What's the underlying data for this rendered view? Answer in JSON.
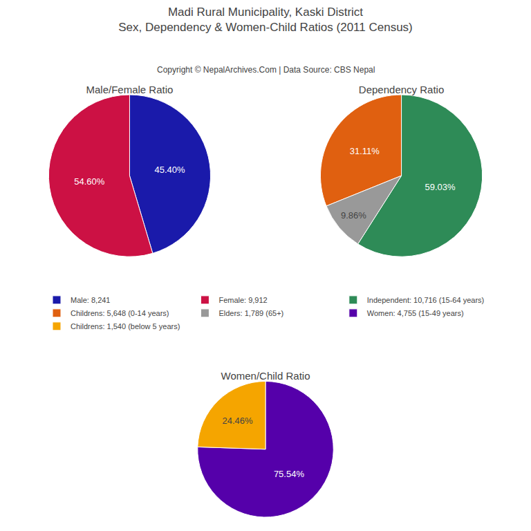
{
  "title": "Madi Rural Municipality, Kaski District",
  "subtitle": "Sex, Dependency & Women-Child Ratios (2011 Census)",
  "annotations": [
    "Copyright © NepalArchives.Com | Data Source: CBS Nepal"
  ],
  "legend": "center",
  "chart_data": [
    {
      "type": "pie",
      "title": "Male/Female Ratio",
      "categories": [
        "Male: 8,241",
        "Female: 9,912"
      ],
      "values": [
        45.4,
        54.6
      ],
      "value_labels": [
        "45.40%",
        "54.60%"
      ],
      "colors": [
        "#1a1aaa",
        "#cc1144"
      ],
      "data_labels": true
    },
    {
      "type": "pie",
      "title": "Dependency Ratio",
      "categories": [
        "Independent: 10,716 (15-64 years)",
        "Childrens: 5,648 (0-14 years)",
        "Elders: 1,789 (65+)"
      ],
      "values": [
        59.03,
        31.11,
        9.86
      ],
      "value_labels": [
        "59.03%",
        "31.11%",
        "9.86%"
      ],
      "colors": [
        "#2e8b57",
        "#e06010",
        "#999999"
      ],
      "data_labels": true
    },
    {
      "type": "pie",
      "title": "Women/Child Ratio",
      "categories": [
        "Women: 4,755 (15-49 years)",
        "Childrens: 1,540 (below 5 years)"
      ],
      "values": [
        75.54,
        24.46
      ],
      "value_labels": [
        "75.54%",
        "24.46%"
      ],
      "colors": [
        "#5500aa",
        "#f5a500"
      ],
      "data_labels": true
    }
  ]
}
